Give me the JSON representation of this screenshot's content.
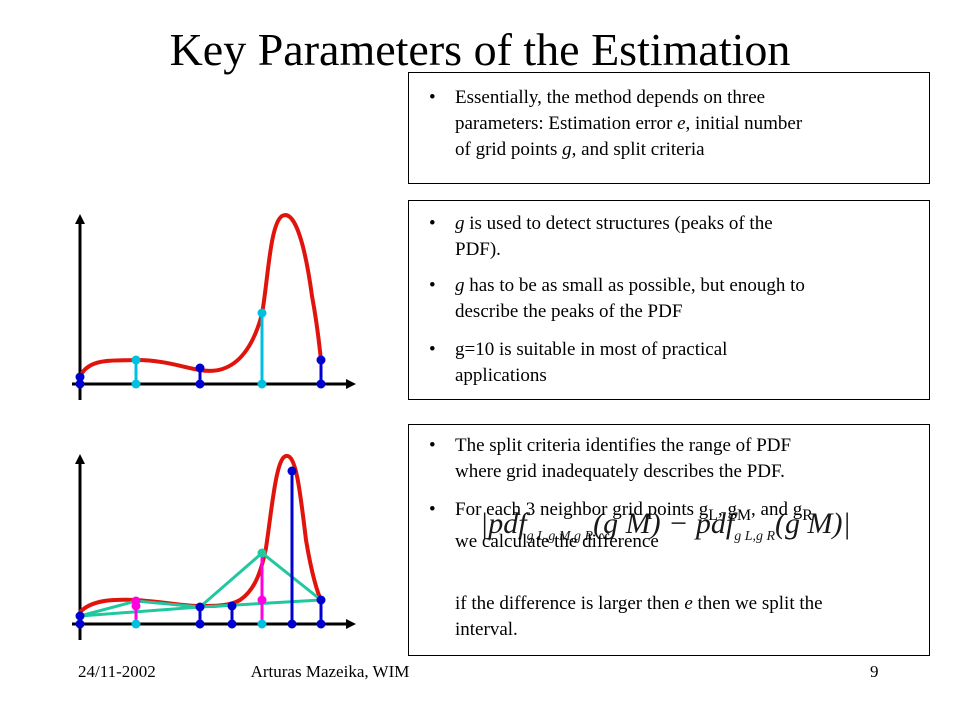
{
  "title": "Key Parameters of the Estimation",
  "box1": {
    "bullet": "•",
    "line1": "Essentially, the method depends on three",
    "line2": "parameters: Estimation  error ",
    "line2_var": "e",
    "line2_end": ", initial number",
    "line3": "of grid points ",
    "line3_var": "g",
    "line3_end": ", and split criteria"
  },
  "box2": {
    "bullet": "•",
    "b1_var": "g",
    "b1_l1": " is used to detect structures (peaks of the",
    "b1_l2": "PDF).",
    "b2_var": "g",
    "b2_l1": " has to be as small as possible, but enough to",
    "b2_l2": "describe the peaks of the PDF",
    "b3_l1": "g=10 is suitable in most of practical",
    "b3_l2": "applications"
  },
  "box3": {
    "bullet": "•",
    "b1_l1": "The split criteria identifies the range of PDF",
    "b1_l2": "where grid inadequately describes the PDF.",
    "b2_l1a": "For each 3 neighbor grid points g",
    "b2_sub_L": "L",
    "b2_sep1": ", g",
    "b2_sub_M": "M",
    "b2_sep2": ", and g",
    "b2_sub_R": "R",
    "b2_l2": "we calculate the difference",
    "p_l1a": "if the difference is larger then ",
    "p_var": "e",
    "p_l1b": " then we split the",
    "p_l2": "interval."
  },
  "formula": {
    "bar": "|",
    "pdf": "pdf",
    "sub1": "g L,g M,g R",
    "open": "(",
    "arg": "g M",
    "close": ")",
    "minus": " − ",
    "sub2": "g L,g R"
  },
  "footer": {
    "date": "24/11-2002",
    "author": "Arturas Mazeika, WIM",
    "page": "9"
  },
  "colors": {
    "curve": "#e0140c",
    "stem_cyan": "#00c0e0",
    "stem_blue": "#0000d0",
    "stem_magenta": "#ff00e0",
    "interp": "#20c8a0"
  }
}
